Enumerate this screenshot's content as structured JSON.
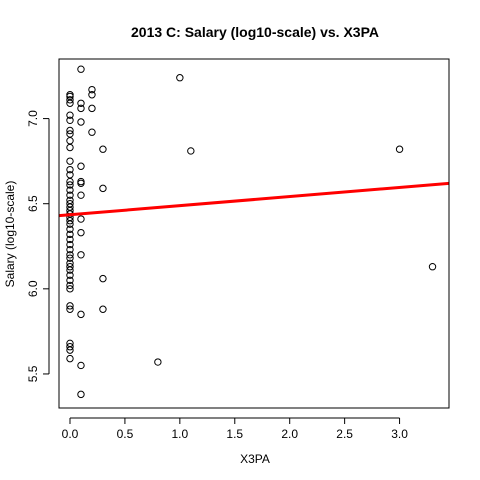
{
  "chart_data": {
    "type": "scatter",
    "title": "2013 C: Salary (log10-scale) vs. X3PA",
    "xlabel": "X3PA",
    "ylabel": "Salary (log10-scale)",
    "xlim": [
      -0.1,
      3.45
    ],
    "ylim": [
      5.3,
      7.35
    ],
    "xticks": [
      0.0,
      0.5,
      1.0,
      1.5,
      2.0,
      2.5,
      3.0
    ],
    "xtick_labels": [
      "0.0",
      "0.5",
      "1.0",
      "1.5",
      "2.0",
      "2.5",
      "3.0"
    ],
    "yticks": [
      5.5,
      6.0,
      6.5,
      7.0
    ],
    "ytick_labels": [
      "5.5",
      "6.0",
      "6.5",
      "7.0"
    ],
    "grid": false,
    "colors": {
      "points": "#000000",
      "fit_line": "#ff0000",
      "frame": "#000000"
    },
    "points": [
      {
        "x": 0.0,
        "y": 7.14
      },
      {
        "x": 0.0,
        "y": 7.13
      },
      {
        "x": 0.0,
        "y": 7.11
      },
      {
        "x": 0.0,
        "y": 7.09
      },
      {
        "x": 0.0,
        "y": 7.02
      },
      {
        "x": 0.0,
        "y": 6.99
      },
      {
        "x": 0.0,
        "y": 6.93
      },
      {
        "x": 0.0,
        "y": 6.91
      },
      {
        "x": 0.0,
        "y": 6.87
      },
      {
        "x": 0.0,
        "y": 6.83
      },
      {
        "x": 0.0,
        "y": 6.75
      },
      {
        "x": 0.0,
        "y": 6.7
      },
      {
        "x": 0.0,
        "y": 6.67
      },
      {
        "x": 0.0,
        "y": 6.63
      },
      {
        "x": 0.0,
        "y": 6.61
      },
      {
        "x": 0.0,
        "y": 6.58
      },
      {
        "x": 0.0,
        "y": 6.55
      },
      {
        "x": 0.0,
        "y": 6.52
      },
      {
        "x": 0.0,
        "y": 6.5
      },
      {
        "x": 0.0,
        "y": 6.48
      },
      {
        "x": 0.0,
        "y": 6.46
      },
      {
        "x": 0.0,
        "y": 6.44
      },
      {
        "x": 0.0,
        "y": 6.42
      },
      {
        "x": 0.0,
        "y": 6.4
      },
      {
        "x": 0.0,
        "y": 6.38
      },
      {
        "x": 0.0,
        "y": 6.35
      },
      {
        "x": 0.0,
        "y": 6.32
      },
      {
        "x": 0.0,
        "y": 6.29
      },
      {
        "x": 0.0,
        "y": 6.26
      },
      {
        "x": 0.0,
        "y": 6.23
      },
      {
        "x": 0.0,
        "y": 6.2
      },
      {
        "x": 0.0,
        "y": 6.18
      },
      {
        "x": 0.0,
        "y": 6.15
      },
      {
        "x": 0.0,
        "y": 6.13
      },
      {
        "x": 0.0,
        "y": 6.11
      },
      {
        "x": 0.0,
        "y": 6.08
      },
      {
        "x": 0.0,
        "y": 6.05
      },
      {
        "x": 0.0,
        "y": 6.02
      },
      {
        "x": 0.0,
        "y": 6.0
      },
      {
        "x": 0.0,
        "y": 5.9
      },
      {
        "x": 0.0,
        "y": 5.88
      },
      {
        "x": 0.0,
        "y": 5.68
      },
      {
        "x": 0.0,
        "y": 5.66
      },
      {
        "x": 0.0,
        "y": 5.64
      },
      {
        "x": 0.0,
        "y": 5.59
      },
      {
        "x": 0.1,
        "y": 7.29
      },
      {
        "x": 0.1,
        "y": 7.09
      },
      {
        "x": 0.1,
        "y": 7.06
      },
      {
        "x": 0.1,
        "y": 6.98
      },
      {
        "x": 0.1,
        "y": 6.72
      },
      {
        "x": 0.1,
        "y": 6.63
      },
      {
        "x": 0.1,
        "y": 6.62
      },
      {
        "x": 0.1,
        "y": 6.55
      },
      {
        "x": 0.1,
        "y": 6.41
      },
      {
        "x": 0.1,
        "y": 6.33
      },
      {
        "x": 0.1,
        "y": 6.2
      },
      {
        "x": 0.1,
        "y": 5.85
      },
      {
        "x": 0.1,
        "y": 5.55
      },
      {
        "x": 0.1,
        "y": 5.38
      },
      {
        "x": 0.2,
        "y": 7.17
      },
      {
        "x": 0.2,
        "y": 7.14
      },
      {
        "x": 0.2,
        "y": 7.06
      },
      {
        "x": 0.2,
        "y": 6.92
      },
      {
        "x": 0.3,
        "y": 6.82
      },
      {
        "x": 0.3,
        "y": 6.59
      },
      {
        "x": 0.3,
        "y": 6.06
      },
      {
        "x": 0.3,
        "y": 5.88
      },
      {
        "x": 0.8,
        "y": 5.57
      },
      {
        "x": 1.0,
        "y": 7.24
      },
      {
        "x": 1.1,
        "y": 6.81
      },
      {
        "x": 3.0,
        "y": 6.82
      },
      {
        "x": 3.3,
        "y": 6.13
      }
    ],
    "fit_line": {
      "intercept": 6.435,
      "slope": 0.0535
    }
  }
}
